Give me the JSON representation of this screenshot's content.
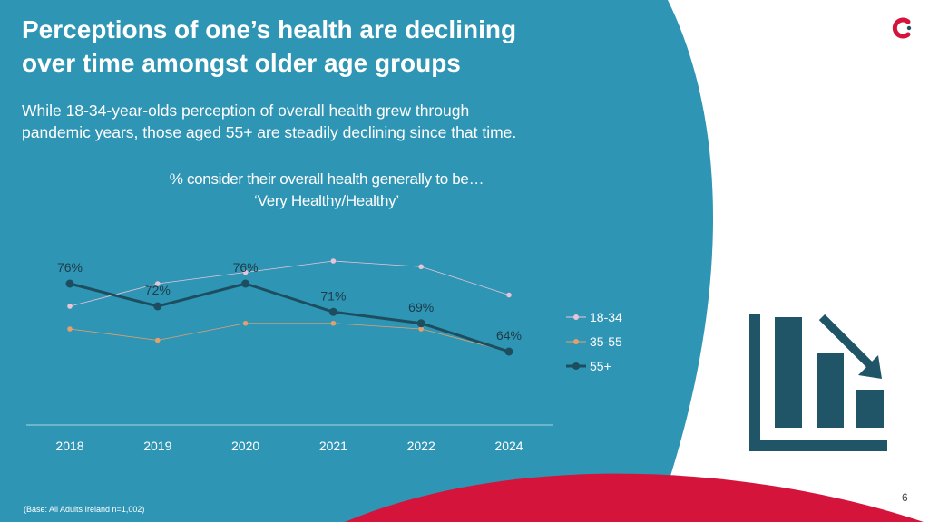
{
  "colors": {
    "panel": "#2e95b5",
    "accent_red": "#d5143c",
    "icon": "#1f5566",
    "series_18_34": "#e8c5d6",
    "series_35_55": "#e4a06c",
    "series_55_plus": "#1d4e5f"
  },
  "header": {
    "title_lines": [
      "Perceptions of one’s health are declining",
      "over time amongst older age groups"
    ],
    "subtitle_lines": [
      "While 18-34-year-olds perception of overall health grew through",
      "pandemic years, those aged 55+ are steadily declining since that time."
    ]
  },
  "chart_data": {
    "type": "line",
    "title_lines": [
      "% consider their overall health generally to be…",
      "‘Very Healthy/Healthy’"
    ],
    "categories": [
      "2018",
      "2019",
      "2020",
      "2021",
      "2022",
      "2024"
    ],
    "ylim": [
      55,
      85
    ],
    "series": [
      {
        "name": "18-34",
        "values": [
          72,
          76,
          78,
          80,
          79,
          74
        ],
        "labels": []
      },
      {
        "name": "35-55",
        "values": [
          68,
          66,
          69,
          69,
          68,
          64
        ],
        "labels": []
      },
      {
        "name": "55+",
        "values": [
          76,
          72,
          76,
          71,
          69,
          64
        ],
        "labels": [
          "76%",
          "72%",
          "76%",
          "71%",
          "69%",
          "64%"
        ]
      }
    ],
    "legend_position": "right",
    "grid": false
  },
  "icons": {
    "logo": "brand-c-logo-icon",
    "decline": "declining-bar-chart-icon"
  },
  "footer": {
    "page_number": "6",
    "base_note": "(Base: All Adults Ireland  n=1,002)"
  }
}
